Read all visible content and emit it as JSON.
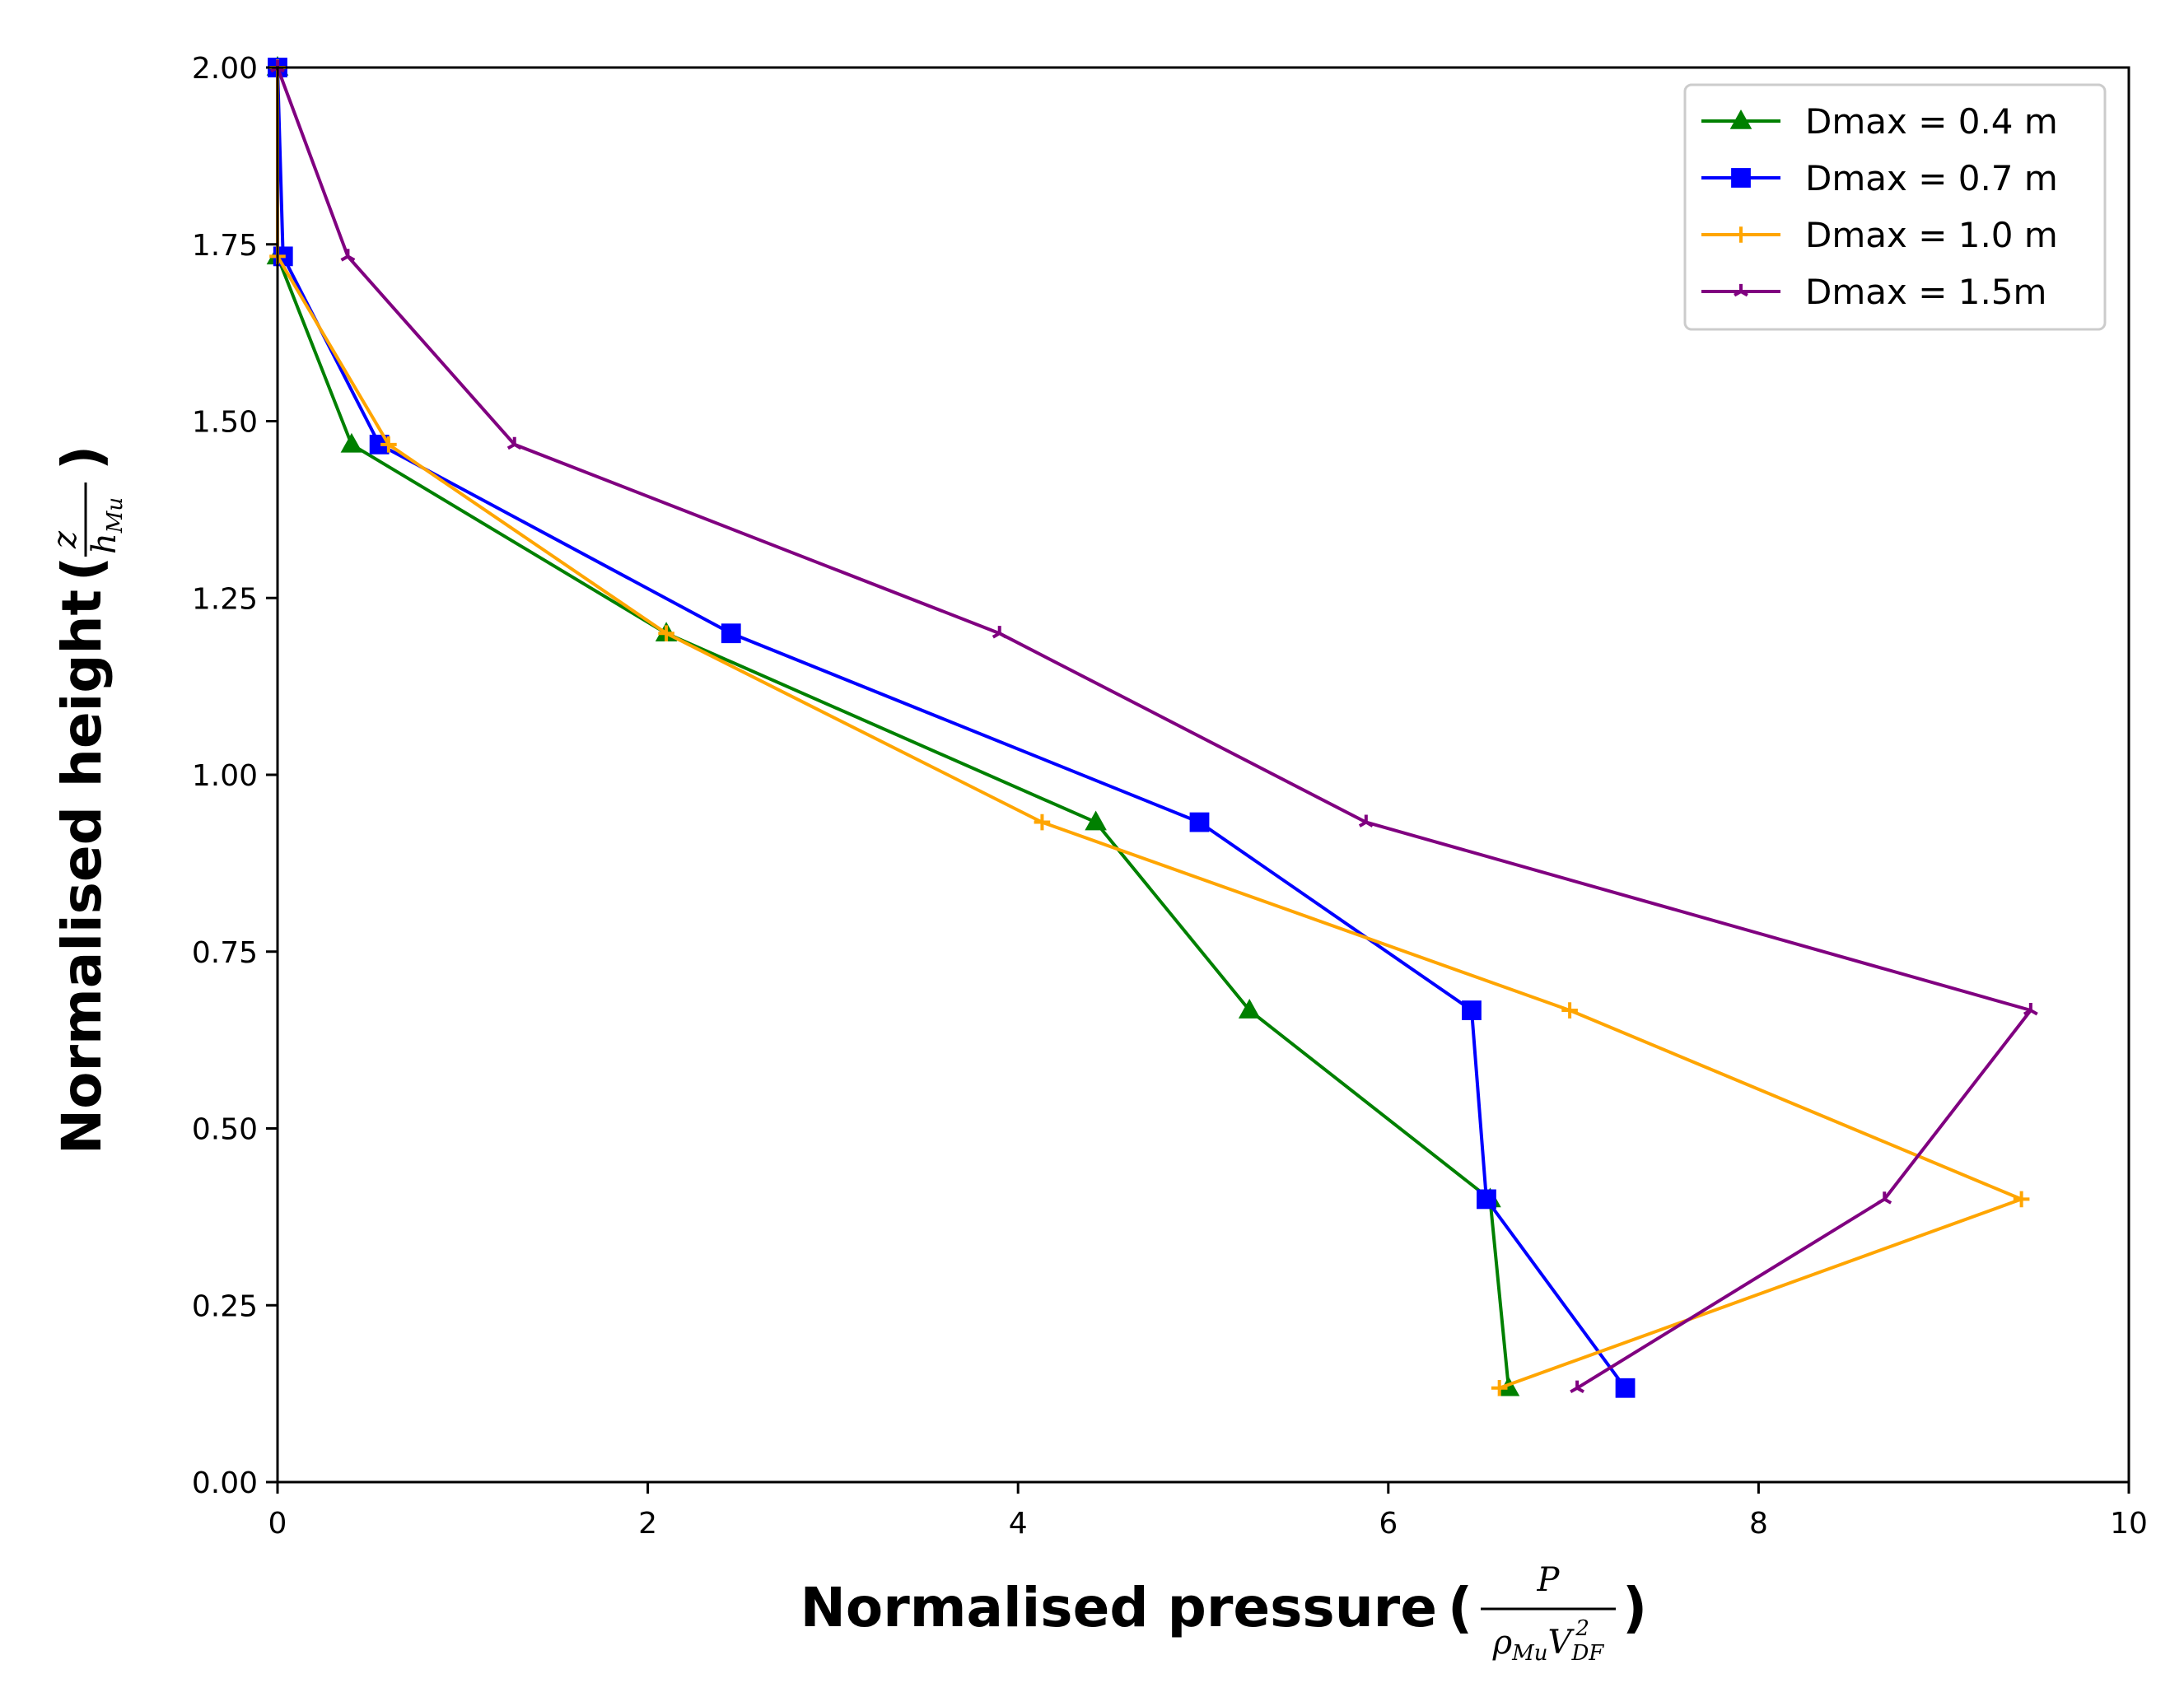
{
  "chart_data": {
    "type": "line",
    "title": "",
    "xlabel": "Normalised pressure",
    "xlabel_fraction": {
      "numerator": "P",
      "denominator": "ρ_Mu V_DF^2"
    },
    "ylabel": "Normalised height",
    "ylabel_fraction": {
      "numerator": "z",
      "denominator": "h_Mu"
    },
    "xlim": [
      0,
      10
    ],
    "ylim": [
      0,
      2
    ],
    "xticks": [
      0,
      2,
      4,
      6,
      8,
      10
    ],
    "xtick_labels": [
      "0",
      "2",
      "4",
      "6",
      "8",
      "10"
    ],
    "yticks": [
      0,
      0.25,
      0.5,
      0.75,
      1.0,
      1.25,
      1.5,
      1.75,
      2.0
    ],
    "ytick_labels": [
      "0.00",
      "0.25",
      "0.50",
      "0.75",
      "1.00",
      "1.25",
      "1.50",
      "1.75",
      "2.00"
    ],
    "grid": false,
    "legend_position": "top-right",
    "series": [
      {
        "name": "Dmax = 0.4 m",
        "color": "#008000",
        "marker": "triangle",
        "x": [
          6.65,
          6.55,
          5.25,
          4.42,
          2.1,
          0.4,
          0.0,
          0.0
        ],
        "y": [
          0.133,
          0.4,
          0.667,
          0.933,
          1.2,
          1.467,
          1.733,
          2.0
        ]
      },
      {
        "name": "Dmax = 0.7 m",
        "color": "#0000ff",
        "marker": "square",
        "x": [
          7.28,
          6.53,
          6.45,
          4.98,
          2.45,
          0.55,
          0.03,
          0.0
        ],
        "y": [
          0.133,
          0.4,
          0.667,
          0.933,
          1.2,
          1.467,
          1.733,
          2.0
        ]
      },
      {
        "name": "Dmax = 1.0 m",
        "color": "#ffa500",
        "marker": "plus",
        "x": [
          6.6,
          9.42,
          6.98,
          4.13,
          2.1,
          0.6,
          0.0,
          0.0
        ],
        "y": [
          0.133,
          0.4,
          0.667,
          0.933,
          1.2,
          1.467,
          1.733,
          2.0
        ]
      },
      {
        "name": "Dmax = 1.5m",
        "color": "#800080",
        "marker": "tri",
        "x": [
          7.02,
          8.68,
          9.47,
          5.88,
          3.9,
          1.28,
          0.38,
          0.0
        ],
        "y": [
          0.133,
          0.4,
          0.667,
          0.933,
          1.2,
          1.467,
          1.733,
          2.0
        ]
      }
    ]
  }
}
